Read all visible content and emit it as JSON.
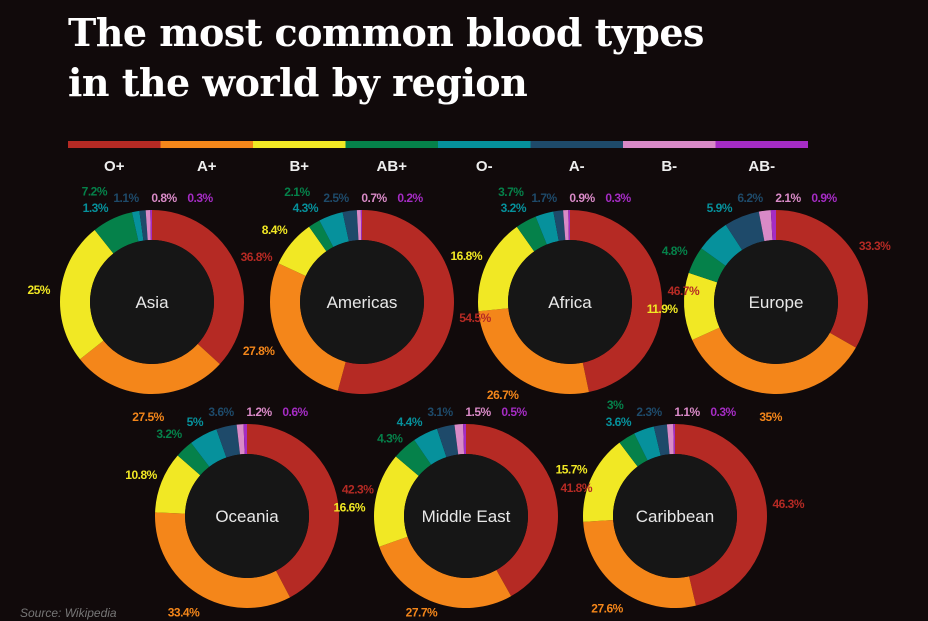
{
  "title_line1": "The most common blood types",
  "title_line2": "in the world by region",
  "source": "Source: Wikipedia",
  "chart_data": {
    "type": "pie",
    "subtype": "donut",
    "legend_placement": "top",
    "categories": [
      "O+",
      "A+",
      "B+",
      "AB+",
      "O-",
      "A-",
      "B-",
      "AB-"
    ],
    "colors": [
      "#b52a24",
      "#f4861a",
      "#f1e824",
      "#05814a",
      "#06919c",
      "#1e4a6a",
      "#d98ac7",
      "#a52cc4"
    ],
    "charts": [
      {
        "region": "Asia",
        "values": [
          36.8,
          27.5,
          25,
          7.2,
          1.3,
          1.1,
          0.8,
          0.3
        ]
      },
      {
        "region": "Americas",
        "values": [
          54.5,
          27.8,
          8.4,
          2.1,
          4.3,
          2.5,
          0.7,
          0.2
        ]
      },
      {
        "region": "Africa",
        "values": [
          46.7,
          26.7,
          16.8,
          3.7,
          3.2,
          1.7,
          0.9,
          0.3
        ]
      },
      {
        "region": "Europe",
        "values": [
          33.3,
          35,
          11.9,
          4.8,
          5.9,
          6.2,
          2.1,
          0.9
        ]
      },
      {
        "region": "Oceania",
        "values": [
          42.3,
          33.4,
          10.8,
          3.2,
          5,
          3.6,
          1.2,
          0.6
        ]
      },
      {
        "region": "Middle East",
        "values": [
          41.8,
          27.7,
          16.6,
          4.3,
          4.4,
          3.1,
          1.5,
          0.5
        ]
      },
      {
        "region": "Caribbean",
        "values": [
          46.3,
          27.6,
          15.7,
          3,
          3.6,
          2.3,
          1.1,
          0.3
        ]
      }
    ]
  }
}
